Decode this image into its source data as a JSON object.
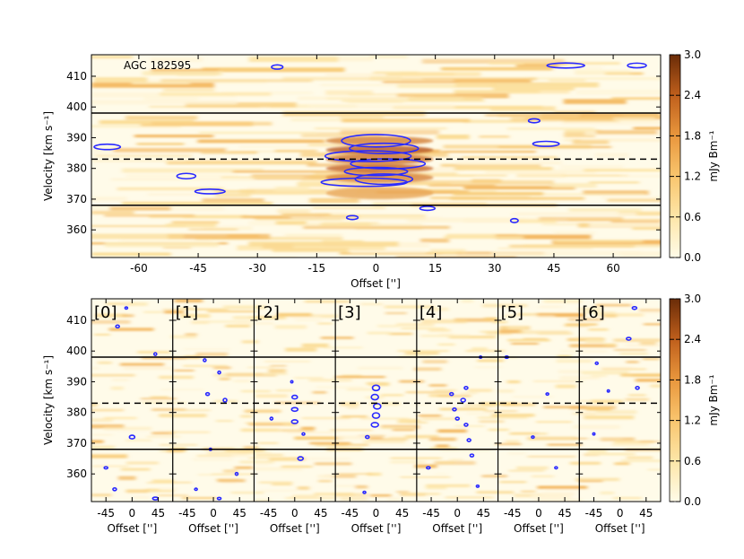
{
  "chart_data": [
    {
      "type": "heatmap",
      "label": "AGC 182595",
      "xlabel": "Offset ['']",
      "ylabel": "Velocity [km s⁻¹]",
      "xlim": [
        -72,
        72
      ],
      "ylim": [
        351,
        417
      ],
      "xticks": [
        -60,
        -45,
        -30,
        -15,
        0,
        15,
        30,
        45,
        60
      ],
      "yticks": [
        360,
        370,
        380,
        390,
        400,
        410
      ],
      "solid_lines_velocity": [
        368,
        398
      ],
      "dashed_line_velocity": 383,
      "contour_color": "#2a2aff",
      "colorbar": {
        "label": "mJy Bm⁻¹",
        "min": 0.0,
        "max": 3.0,
        "ticks": [
          "0.0",
          "0.6",
          "1.2",
          "1.8",
          "2.4",
          "3.0"
        ]
      },
      "emission_peak": {
        "offset": 0,
        "velocity_range": [
          375,
          390
        ]
      }
    },
    {
      "type": "heatmap",
      "panels": [
        "[0]",
        "[1]",
        "[2]",
        "[3]",
        "[4]",
        "[5]",
        "[6]"
      ],
      "xlabel": "Offset ['']",
      "ylabel": "Velocity [km s⁻¹]",
      "xticks": [
        -45,
        0,
        45
      ],
      "xlim": [
        -70,
        70
      ],
      "yticks": [
        360,
        370,
        380,
        390,
        400,
        410
      ],
      "ylim": [
        351,
        417
      ],
      "solid_lines_velocity": [
        368,
        398
      ],
      "dashed_line_velocity": 383,
      "colorbar": {
        "label": "mJy Bm⁻¹",
        "min": 0.0,
        "max": 3.0,
        "ticks": [
          "0.0",
          "0.6",
          "1.2",
          "1.8",
          "2.4",
          "3.0"
        ]
      }
    }
  ]
}
